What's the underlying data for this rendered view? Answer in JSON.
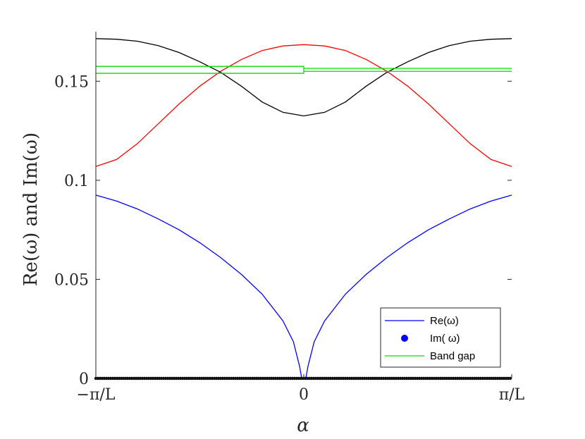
{
  "chart_data": {
    "type": "line",
    "xlabel": "α",
    "ylabel": "Re(ω) and Im(ω)",
    "x_ticks": [
      {
        "value": -1,
        "label": "−π/L"
      },
      {
        "value": 0,
        "label": "0"
      },
      {
        "value": 1,
        "label": "π/L"
      }
    ],
    "y_ticks": [
      {
        "value": 0,
        "label": "0"
      },
      {
        "value": 0.05,
        "label": "0.05"
      },
      {
        "value": 0.1,
        "label": "0.1"
      },
      {
        "value": 0.15,
        "label": "0.15"
      }
    ],
    "xlim": [
      -1,
      1
    ],
    "ylim": [
      0,
      0.175
    ],
    "x_unit_note": "π/L",
    "legend_position": "bottom-right",
    "grid": false,
    "series": [
      {
        "name": "Re(ω)",
        "color": "#0000ff",
        "style": "line",
        "points": [
          [
            -1.0,
            0.0925
          ],
          [
            -0.9,
            0.0895
          ],
          [
            -0.8,
            0.0855
          ],
          [
            -0.7,
            0.0805
          ],
          [
            -0.6,
            0.075
          ],
          [
            -0.5,
            0.0685
          ],
          [
            -0.4,
            0.061
          ],
          [
            -0.3,
            0.0525
          ],
          [
            -0.2,
            0.0425
          ],
          [
            -0.1,
            0.029
          ],
          [
            -0.05,
            0.0185
          ],
          [
            -0.02,
            0.006
          ],
          [
            -0.01,
            0.0
          ],
          [
            0.01,
            0.0
          ],
          [
            0.02,
            0.006
          ],
          [
            0.05,
            0.0185
          ],
          [
            0.1,
            0.029
          ],
          [
            0.2,
            0.0425
          ],
          [
            0.3,
            0.0525
          ],
          [
            0.4,
            0.061
          ],
          [
            0.5,
            0.0685
          ],
          [
            0.6,
            0.075
          ],
          [
            0.7,
            0.0805
          ],
          [
            0.8,
            0.0855
          ],
          [
            0.9,
            0.0895
          ],
          [
            1.0,
            0.0925
          ]
        ]
      },
      {
        "name": "",
        "color": "#ff0000",
        "style": "line",
        "points": [
          [
            -1.0,
            0.107
          ],
          [
            -0.9,
            0.1105
          ],
          [
            -0.8,
            0.1185
          ],
          [
            -0.7,
            0.1285
          ],
          [
            -0.6,
            0.1385
          ],
          [
            -0.5,
            0.1475
          ],
          [
            -0.4,
            0.155
          ],
          [
            -0.3,
            0.161
          ],
          [
            -0.2,
            0.1655
          ],
          [
            -0.1,
            0.1678
          ],
          [
            0.0,
            0.1685
          ],
          [
            0.1,
            0.1678
          ],
          [
            0.2,
            0.1655
          ],
          [
            0.3,
            0.161
          ],
          [
            0.4,
            0.155
          ],
          [
            0.5,
            0.1475
          ],
          [
            0.6,
            0.1385
          ],
          [
            0.7,
            0.1285
          ],
          [
            0.8,
            0.1185
          ],
          [
            0.9,
            0.1105
          ],
          [
            1.0,
            0.107
          ]
        ]
      },
      {
        "name": "",
        "color": "#000000",
        "style": "line",
        "points": [
          [
            -1.0,
            0.1715
          ],
          [
            -0.9,
            0.1712
          ],
          [
            -0.8,
            0.1702
          ],
          [
            -0.7,
            0.168
          ],
          [
            -0.6,
            0.1645
          ],
          [
            -0.5,
            0.1598
          ],
          [
            -0.4,
            0.1545
          ],
          [
            -0.3,
            0.1475
          ],
          [
            -0.2,
            0.1395
          ],
          [
            -0.1,
            0.1343
          ],
          [
            0.0,
            0.1325
          ],
          [
            0.1,
            0.1343
          ],
          [
            0.2,
            0.1395
          ],
          [
            0.3,
            0.1475
          ],
          [
            0.4,
            0.1545
          ],
          [
            0.5,
            0.1598
          ],
          [
            0.6,
            0.1645
          ],
          [
            0.7,
            0.168
          ],
          [
            0.8,
            0.1702
          ],
          [
            0.9,
            0.1712
          ],
          [
            1.0,
            0.1715
          ]
        ]
      },
      {
        "name": "Im( ω)",
        "color": "#0000ff",
        "style": "markers",
        "points": [
          [
            -1.0,
            0
          ],
          [
            -0.5,
            0
          ],
          [
            0.0,
            0
          ],
          [
            0.5,
            0
          ],
          [
            1.0,
            0
          ]
        ]
      },
      {
        "name": "Band gap",
        "color": "#00dd00",
        "style": "hlines",
        "segments": [
          {
            "x": [
              -1.0,
              0.0
            ],
            "y": 0.1575
          },
          {
            "x": [
              -1.0,
              0.0
            ],
            "y": 0.154
          },
          {
            "x": [
              0.0,
              1.0
            ],
            "y": 0.1565
          },
          {
            "x": [
              0.0,
              1.0
            ],
            "y": 0.155
          }
        ]
      }
    ],
    "legend": [
      {
        "label": "Re(ω)",
        "color": "#0000ff",
        "kind": "line"
      },
      {
        "label": "Im( ω)",
        "color": "#0000ff",
        "kind": "marker"
      },
      {
        "label": "Band gap",
        "color": "#00dd00",
        "kind": "line"
      }
    ]
  }
}
